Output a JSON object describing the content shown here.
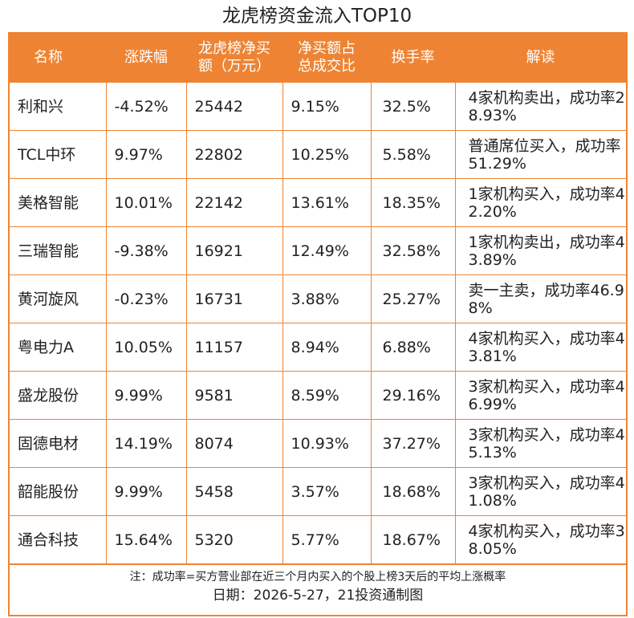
{
  "title": "龙虎榜资金流入TOP10",
  "table": {
    "header": [
      "名称",
      "涨跌幅",
      "龙虎榜净买额（万元）",
      "净买额占总成交比",
      "换手率",
      "解读"
    ],
    "rows": [
      [
        "利和兴",
        "-4.52%",
        "25442",
        "9.15%",
        "32.5%",
        "4家机构卖出，成功率28.93%"
      ],
      [
        "TCL中环",
        "9.97%",
        "22802",
        "10.25%",
        "5.58%",
        "普通席位买入，成功率51.29%"
      ],
      [
        "美格智能",
        "10.01%",
        "22142",
        "13.61%",
        "18.35%",
        "1家机构买入，成功率42.20%"
      ],
      [
        "三瑞智能",
        "-9.38%",
        "16921",
        "12.49%",
        "32.58%",
        "1家机构卖出，成功率43.89%"
      ],
      [
        "黄河旋风",
        "-0.23%",
        "16731",
        "3.88%",
        "25.27%",
        "卖一主卖，成功率46.98%"
      ],
      [
        "粤电力A",
        "10.05%",
        "11157",
        "8.94%",
        "6.88%",
        "4家机构买入，成功率43.81%"
      ],
      [
        "盛龙股份",
        "9.99%",
        "9581",
        "8.59%",
        "29.16%",
        "3家机构买入，成功率46.99%"
      ],
      [
        "固德电材",
        "14.19%",
        "8074",
        "10.93%",
        "37.27%",
        "3家机构买入，成功率45.13%"
      ],
      [
        "韶能股份",
        "9.99%",
        "5458",
        "3.57%",
        "18.68%",
        "3家机构买入，成功率41.08%"
      ],
      [
        "通合科技",
        "15.64%",
        "5320",
        "5.77%",
        "18.67%",
        "4家机构买入，成功率38.05%"
      ]
    ]
  },
  "footer": {
    "note": "注：成功率=买方营业部在近三个月内买入的个股上榜3天后的平均上涨概率",
    "source": "日期：2026-5-27，21投资通制图"
  }
}
